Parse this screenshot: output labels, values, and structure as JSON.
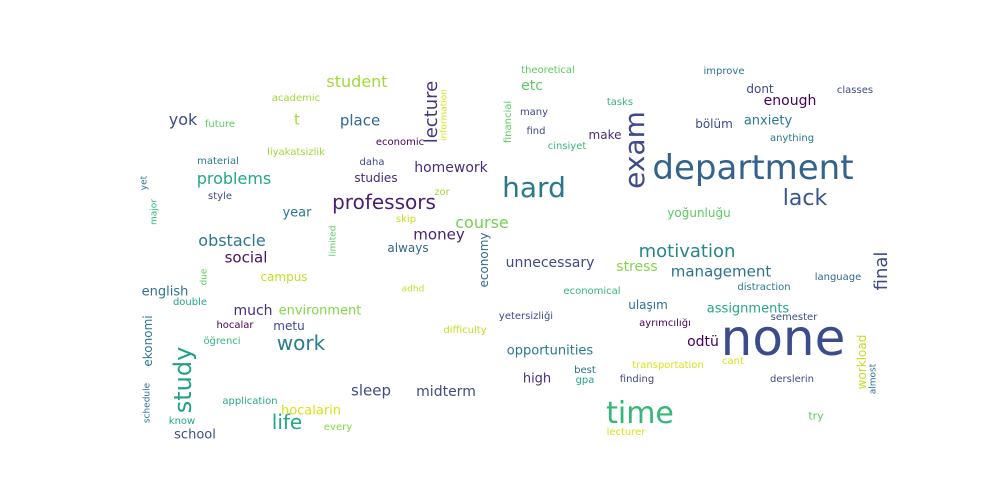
{
  "word_cloud": {
    "words": [
      {
        "text": "none",
        "color": "#3b4c8c"
      },
      {
        "text": "department",
        "color": "#33638d"
      },
      {
        "text": "time",
        "color": "#35b779"
      },
      {
        "text": "hard",
        "color": "#2a788e"
      },
      {
        "text": "exam",
        "color": "#3e4a89"
      },
      {
        "text": "professors",
        "color": "#481f70"
      },
      {
        "text": "lack",
        "color": "#39568c"
      },
      {
        "text": "study",
        "color": "#1fa188"
      },
      {
        "text": "life",
        "color": "#22a884"
      },
      {
        "text": "work",
        "color": "#287d8e"
      },
      {
        "text": "motivation",
        "color": "#25858e"
      },
      {
        "text": "lecture",
        "color": "#453581"
      },
      {
        "text": "final",
        "color": "#3e4a89"
      },
      {
        "text": "course",
        "color": "#75d054"
      },
      {
        "text": "management",
        "color": "#2c728e"
      },
      {
        "text": "student",
        "color": "#a0da39"
      },
      {
        "text": "obstacle",
        "color": "#2a788e"
      },
      {
        "text": "problems",
        "color": "#22a884"
      },
      {
        "text": "sleep",
        "color": "#3e4a89"
      },
      {
        "text": "homework",
        "color": "#472d7b"
      },
      {
        "text": "money",
        "color": "#481f70"
      },
      {
        "text": "social",
        "color": "#471164"
      },
      {
        "text": "place",
        "color": "#31688e"
      },
      {
        "text": "stress",
        "color": "#86d549"
      },
      {
        "text": "unnecessary",
        "color": "#3e4a89"
      },
      {
        "text": "midterm",
        "color": "#3e4a89"
      },
      {
        "text": "yok",
        "color": "#3e4a89"
      },
      {
        "text": "t",
        "color": "#a0da39"
      },
      {
        "text": "etc",
        "color": "#5ec962"
      },
      {
        "text": "enough",
        "color": "#440154"
      },
      {
        "text": "anxiety",
        "color": "#2a788e"
      },
      {
        "text": "assignments",
        "color": "#22a884"
      },
      {
        "text": "much",
        "color": "#472d7b"
      },
      {
        "text": "environment",
        "color": "#86d549"
      },
      {
        "text": "opportunities",
        "color": "#2a788e"
      },
      {
        "text": "odtü",
        "color": "#440154"
      },
      {
        "text": "workload",
        "color": "#c2df23"
      },
      {
        "text": "hocalarin",
        "color": "#d8e219"
      },
      {
        "text": "school",
        "color": "#3e4a89"
      },
      {
        "text": "economy",
        "color": "#31688e"
      },
      {
        "text": "english",
        "color": "#2c728e"
      },
      {
        "text": "year",
        "color": "#2a788e"
      },
      {
        "text": "studies",
        "color": "#482878"
      },
      {
        "text": "high",
        "color": "#472d7b"
      },
      {
        "text": "campus",
        "color": "#c2df23"
      },
      {
        "text": "always",
        "color": "#31688e"
      },
      {
        "text": "yoğunluğu",
        "color": "#5ec962"
      },
      {
        "text": "make",
        "color": "#472d7b"
      },
      {
        "text": "dont",
        "color": "#3e4a89"
      },
      {
        "text": "bölüm",
        "color": "#3e4a89"
      },
      {
        "text": "metu",
        "color": "#3e4a89"
      },
      {
        "text": "ulaşım",
        "color": "#2c728e"
      },
      {
        "text": "ekonomi",
        "color": "#2a788e"
      },
      {
        "text": "ayrımcılığı",
        "color": "#440154"
      },
      {
        "text": "yetersizliği",
        "color": "#3e4a89"
      },
      {
        "text": "information",
        "color": "#d8e219"
      },
      {
        "text": "financial",
        "color": "#5ec962"
      },
      {
        "text": "theoretical",
        "color": "#5ec962"
      },
      {
        "text": "improve",
        "color": "#2c728e"
      },
      {
        "text": "classes",
        "color": "#3e4a89"
      },
      {
        "text": "academic",
        "color": "#a0da39"
      },
      {
        "text": "future",
        "color": "#5ec962"
      },
      {
        "text": "many",
        "color": "#3e4a89"
      },
      {
        "text": "tasks",
        "color": "#35b779"
      },
      {
        "text": "find",
        "color": "#3e4a89"
      },
      {
        "text": "cinsiyet",
        "color": "#35b779"
      },
      {
        "text": "economic",
        "color": "#440154"
      },
      {
        "text": "anything",
        "color": "#2a788e"
      },
      {
        "text": "liyakatsizlik",
        "color": "#a0da39"
      },
      {
        "text": "daha",
        "color": "#3e4a89"
      },
      {
        "text": "material",
        "color": "#2a788e"
      },
      {
        "text": "zor",
        "color": "#a0da39"
      },
      {
        "text": "style",
        "color": "#3e4a89"
      },
      {
        "text": "skip",
        "color": "#c2df23"
      },
      {
        "text": "yet",
        "color": "#2c728e"
      },
      {
        "text": "major",
        "color": "#35b779"
      },
      {
        "text": "limited",
        "color": "#5ec962"
      },
      {
        "text": "language",
        "color": "#31688e"
      },
      {
        "text": "due",
        "color": "#5ec962"
      },
      {
        "text": "distraction",
        "color": "#2a788e"
      },
      {
        "text": "adhd",
        "color": "#c2df23"
      },
      {
        "text": "economical",
        "color": "#35b779"
      },
      {
        "text": "semester",
        "color": "#3e4a89"
      },
      {
        "text": "double",
        "color": "#22a884"
      },
      {
        "text": "difficulty",
        "color": "#c2df23"
      },
      {
        "text": "hocalar",
        "color": "#440154"
      },
      {
        "text": "öğrenci",
        "color": "#35b779"
      },
      {
        "text": "cant",
        "color": "#d8e219"
      },
      {
        "text": "transportation",
        "color": "#d8e219"
      },
      {
        "text": "almost",
        "color": "#2c728e"
      },
      {
        "text": "schedule",
        "color": "#2c728e"
      },
      {
        "text": "best",
        "color": "#2c728e"
      },
      {
        "text": "gpa",
        "color": "#22a884"
      },
      {
        "text": "finding",
        "color": "#3e4a89"
      },
      {
        "text": "derslerin",
        "color": "#3e4a89"
      },
      {
        "text": "application",
        "color": "#22a884"
      },
      {
        "text": "know",
        "color": "#22a884"
      },
      {
        "text": "every",
        "color": "#86d549"
      },
      {
        "text": "try",
        "color": "#5ec962"
      },
      {
        "text": "lecturer",
        "color": "#d8e219"
      }
    ]
  }
}
